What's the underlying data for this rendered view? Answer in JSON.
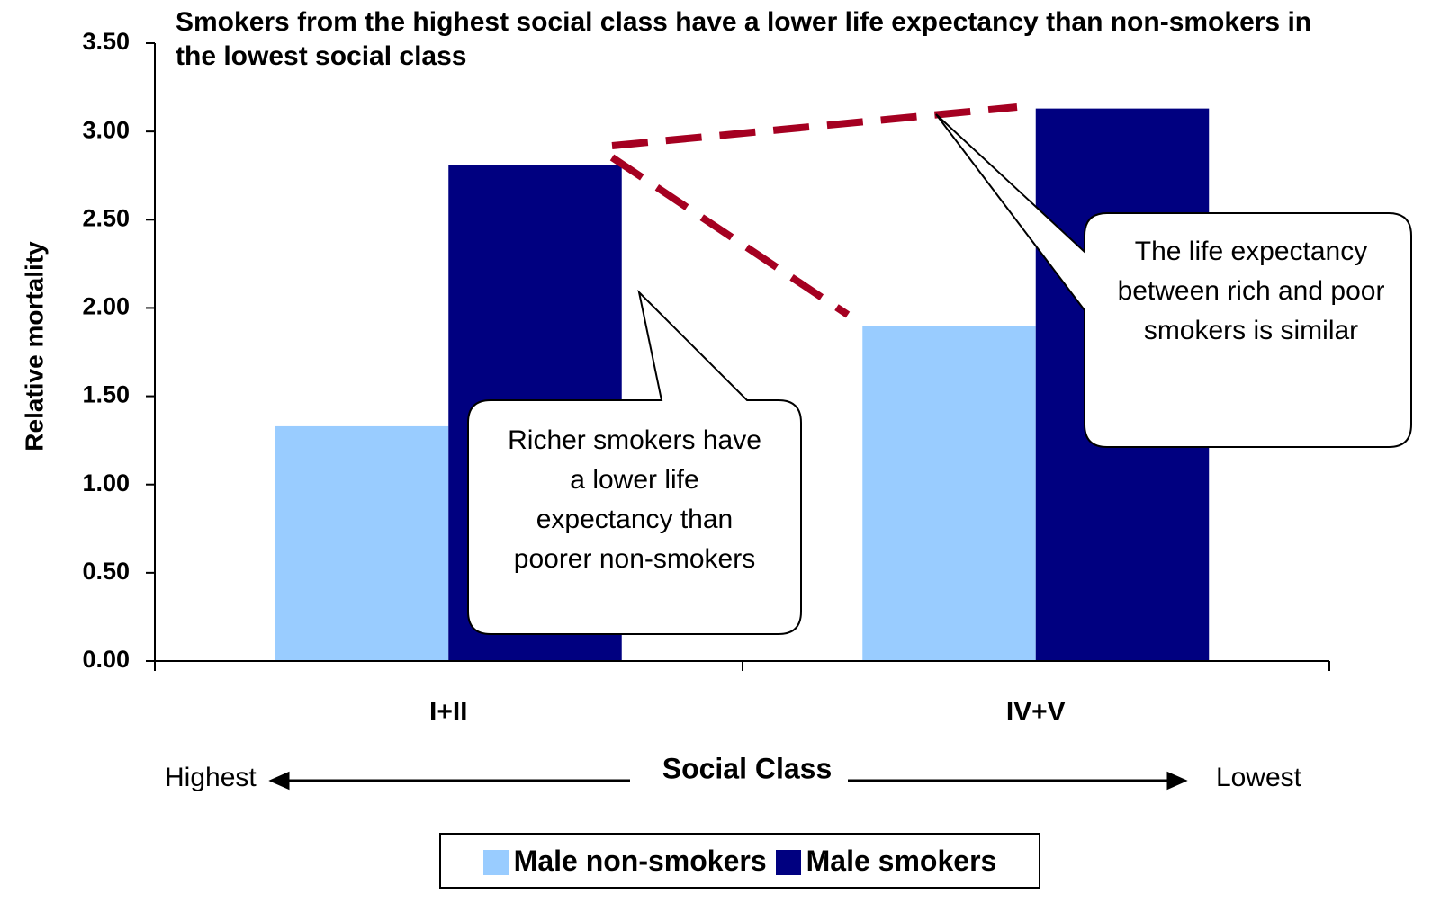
{
  "chart_data": {
    "type": "bar",
    "title": "Smokers from the highest social class have a lower life expectancy than non-smokers in the lowest social class",
    "y_label": "Relative mortality",
    "x_label": "Social Class",
    "x_left_note": "Highest",
    "x_right_note": "Lowest",
    "categories": [
      "I+II",
      "IV+V"
    ],
    "series": [
      {
        "name": "Male non-smokers",
        "color": "#99ccff",
        "values": [
          1.33,
          1.9
        ]
      },
      {
        "name": "Male smokers",
        "color": "#000080",
        "values": [
          2.81,
          3.13
        ]
      }
    ],
    "ylim": [
      0,
      3.5
    ],
    "yticks": [
      {
        "value": 0,
        "label": "0.00"
      },
      {
        "value": 0.5,
        "label": "0.50"
      },
      {
        "value": 1,
        "label": "1.00"
      },
      {
        "value": 1.5,
        "label": "1.50"
      },
      {
        "value": 2,
        "label": "2.00"
      },
      {
        "value": 2.5,
        "label": "2.50"
      },
      {
        "value": 3,
        "label": "3.00"
      },
      {
        "value": 3.5,
        "label": "3.50"
      }
    ],
    "annotations": [
      "Richer smokers have a lower life expectancy than poorer non-smokers",
      "The life expectancy between rich and poor smokers is similar"
    ],
    "legend": "bottom"
  }
}
